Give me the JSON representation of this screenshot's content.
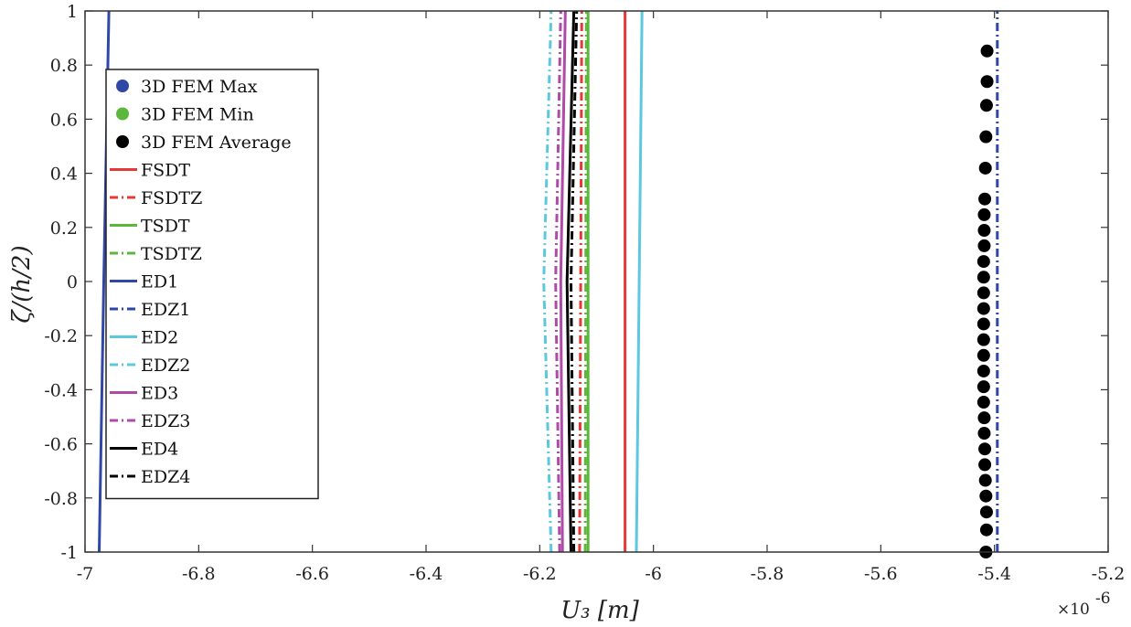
{
  "chart_data": {
    "type": "line",
    "xlabel": "U₃ [m]",
    "ylabel": "ζ/(h/2)",
    "x_multiplier_label": "×10",
    "x_multiplier_exponent": "-6",
    "xlim": [
      -7,
      -5.2
    ],
    "ylim": [
      -1,
      1
    ],
    "xticks": [
      -7,
      -6.8,
      -6.6,
      -6.4,
      -6.2,
      -6,
      -5.8,
      -5.6,
      -5.4,
      -5.2
    ],
    "xtick_labels": [
      "-7",
      "-6.8",
      "-6.6",
      "-6.4",
      "-6.2",
      "-6",
      "-5.8",
      "-5.6",
      "-5.4",
      "-5.2"
    ],
    "yticks": [
      1,
      0.8,
      0.6,
      0.4,
      0.2,
      0,
      -0.2,
      -0.4,
      -0.6,
      -0.8,
      -1
    ],
    "ytick_labels": [
      "1",
      "0.8",
      "0.6",
      "0.4",
      "0.2",
      "0",
      "-0.2",
      "-0.4",
      "-0.6",
      "-0.8",
      "-1"
    ],
    "grid": false,
    "legend_position": "top-left",
    "series": [
      {
        "name": "3D FEM Max",
        "kind": "marker",
        "color": "#2f47a6",
        "x": [],
        "y": []
      },
      {
        "name": "3D FEM Min",
        "kind": "marker",
        "color": "#5cb83c",
        "x": [],
        "y": []
      },
      {
        "name": "3D FEM Average",
        "kind": "marker",
        "color": "#000000",
        "x": [
          -5.415,
          -5.414,
          -5.414,
          -5.415,
          -5.416,
          -5.417,
          -5.417,
          -5.418,
          -5.418,
          -5.419,
          -5.419,
          -5.419,
          -5.419,
          -5.419,
          -5.419,
          -5.419,
          -5.419,
          -5.419,
          -5.419,
          -5.418,
          -5.418,
          -5.418,
          -5.417,
          -5.416,
          -5.415,
          -5.414,
          -5.413,
          -5.413
        ],
        "y": [
          -1,
          -0.918,
          -0.852,
          -0.793,
          -0.735,
          -0.677,
          -0.619,
          -0.561,
          -0.504,
          -0.446,
          -0.389,
          -0.331,
          -0.273,
          -0.215,
          -0.157,
          -0.1,
          -0.042,
          0.016,
          0.074,
          0.132,
          0.189,
          0.247,
          0.305,
          0.419,
          0.535,
          0.651,
          0.739,
          0.852
        ]
      },
      {
        "name": "FSDT",
        "kind": "line",
        "style": "solid",
        "color": "#e53935",
        "x": [
          -6.05,
          -6.05,
          -6.05
        ],
        "y": [
          -1,
          0,
          1
        ]
      },
      {
        "name": "FSDTZ",
        "kind": "line",
        "style": "dashdot",
        "color": "#e53935",
        "x": [
          -6.13,
          -6.128,
          -6.126
        ],
        "y": [
          -1,
          0,
          1
        ]
      },
      {
        "name": "TSDT",
        "kind": "line",
        "style": "solid",
        "color": "#5cb83c",
        "x": [
          -6.115,
          -6.115,
          -6.115
        ],
        "y": [
          -1,
          0,
          1
        ]
      },
      {
        "name": "TSDTZ",
        "kind": "line",
        "style": "dashdot",
        "color": "#5cb83c",
        "x": [
          -6.12,
          -6.119,
          -6.118
        ],
        "y": [
          -1,
          0,
          1
        ]
      },
      {
        "name": "ED1",
        "kind": "line",
        "style": "solid",
        "color": "#2f47a6",
        "x": [
          -6.975,
          -6.967,
          -6.958
        ],
        "y": [
          -1,
          0,
          1
        ]
      },
      {
        "name": "EDZ1",
        "kind": "line",
        "style": "dashdot",
        "color": "#2f47a6",
        "x": [
          -5.395,
          -5.395,
          -5.395
        ],
        "y": [
          -1,
          0,
          1
        ]
      },
      {
        "name": "ED2",
        "kind": "line",
        "style": "solid",
        "color": "#5bc8e0",
        "x": [
          -6.03,
          -6.025,
          -6.02
        ],
        "y": [
          -1,
          0,
          1
        ]
      },
      {
        "name": "EDZ2",
        "kind": "line",
        "style": "dashdot",
        "color": "#5bc8e0",
        "x": [
          -6.18,
          -6.193,
          -6.18
        ],
        "y": [
          -1,
          0,
          1
        ]
      },
      {
        "name": "ED3",
        "kind": "line",
        "style": "solid",
        "color": "#b04aa8",
        "x": [
          -6.16,
          -6.163,
          -6.155
        ],
        "y": [
          -1,
          0,
          1
        ]
      },
      {
        "name": "EDZ3",
        "kind": "line",
        "style": "dashdot",
        "color": "#b04aa8",
        "x": [
          -6.165,
          -6.172,
          -6.163
        ],
        "y": [
          -1,
          0,
          1
        ]
      },
      {
        "name": "ED4",
        "kind": "line",
        "style": "solid",
        "color": "#000000",
        "x": [
          -6.145,
          -6.152,
          -6.14
        ],
        "y": [
          -1,
          0,
          1
        ]
      },
      {
        "name": "EDZ4",
        "kind": "line",
        "style": "dashdot",
        "color": "#000000",
        "x": [
          -6.14,
          -6.145,
          -6.135
        ],
        "y": [
          -1,
          0,
          1
        ]
      }
    ]
  }
}
